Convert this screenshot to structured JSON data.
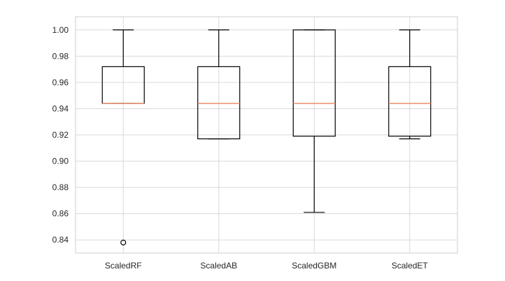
{
  "chart_data": {
    "type": "boxplot",
    "title": "",
    "xlabel": "",
    "ylabel": "",
    "ylim": [
      0.83,
      1.01
    ],
    "yticks": [
      "0.84",
      "0.86",
      "0.88",
      "0.90",
      "0.92",
      "0.94",
      "0.96",
      "0.98",
      "1.00"
    ],
    "grid": true,
    "series": [
      {
        "category": "ScaledRF",
        "whisker_low": 0.944,
        "q1": 0.944,
        "median": 0.944,
        "q3": 0.972,
        "whisker_high": 1.0,
        "outliers": [
          0.838
        ]
      },
      {
        "category": "ScaledAB",
        "whisker_low": 0.917,
        "q1": 0.917,
        "median": 0.944,
        "q3": 0.972,
        "whisker_high": 1.0,
        "outliers": []
      },
      {
        "category": "ScaledGBM",
        "whisker_low": 0.861,
        "q1": 0.919,
        "median": 0.944,
        "q3": 1.0,
        "whisker_high": 1.0,
        "outliers": []
      },
      {
        "category": "ScaledET",
        "whisker_low": 0.917,
        "q1": 0.919,
        "median": 0.944,
        "q3": 0.972,
        "whisker_high": 1.0,
        "outliers": []
      }
    ],
    "colors": {
      "box": "#000000",
      "median": "#e8855a",
      "grid": "#d9d9d9",
      "frame": "#cccccc",
      "text": "#262626"
    }
  }
}
